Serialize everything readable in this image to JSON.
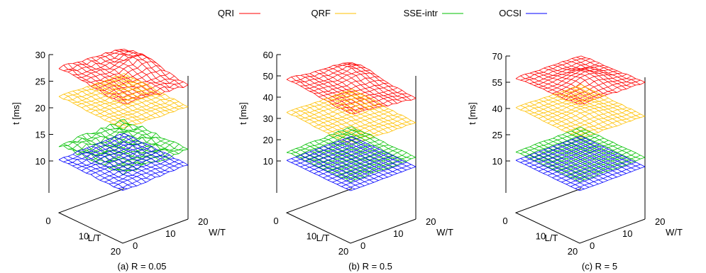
{
  "legend": [
    {
      "label": "QRI",
      "color": "#ff0000"
    },
    {
      "label": "QRF",
      "color": "#ffc000"
    },
    {
      "label": "SSE-intr",
      "color": "#00c000"
    },
    {
      "label": "OCSI",
      "color": "#0000ff"
    }
  ],
  "chart_data": [
    {
      "type": "surface",
      "caption": "(a)  R = 0.05",
      "zlabel": "t [ms]",
      "xlabel": "L/T",
      "ylabel": "W/T",
      "zticks": [
        "10",
        "15",
        "20",
        "25",
        "30"
      ],
      "zlim": [
        10,
        30
      ],
      "xticks": [
        "0",
        "10",
        "20"
      ],
      "yticks": [
        "0",
        "10",
        "20"
      ],
      "series": [
        {
          "name": "QRI",
          "color": "#ff0000",
          "base": 26.5,
          "slope_x": -0.06,
          "slope_y": -0.05,
          "bump": 1.6,
          "noise": 0.25
        },
        {
          "name": "QRF",
          "color": "#ffc000",
          "base": 21.8,
          "slope_x": -0.02,
          "slope_y": -0.02,
          "bump": 0.2,
          "noise": 0.15
        },
        {
          "name": "SSE-intr",
          "color": "#00c000",
          "base": 13.2,
          "slope_x": 0.02,
          "slope_y": 0.0,
          "bump": 0.3,
          "noise": 0.4
        },
        {
          "name": "OCSI",
          "color": "#0000ff",
          "base": 10.4,
          "slope_x": -0.01,
          "slope_y": 0.02,
          "bump": 0.0,
          "noise": 0.15
        }
      ]
    },
    {
      "type": "surface",
      "caption": "(b)   R = 0.5",
      "zlabel": "t [ms]",
      "xlabel": "L/T",
      "ylabel": "W/T",
      "zticks": [
        "10",
        "20",
        "30",
        "40",
        "50",
        "60"
      ],
      "zlim": [
        10,
        60
      ],
      "xticks": [
        "0",
        "10",
        "20"
      ],
      "yticks": [
        "0",
        "10",
        "20"
      ],
      "series": [
        {
          "name": "QRI",
          "color": "#ff0000",
          "base": 45.5,
          "slope_x": -0.12,
          "slope_y": -0.2,
          "bump": 2.5,
          "noise": 0.4
        },
        {
          "name": "QRF",
          "color": "#ffc000",
          "base": 32.0,
          "slope_x": -0.05,
          "slope_y": -0.05,
          "bump": 1.0,
          "noise": 0.3
        },
        {
          "name": "SSE-intr",
          "color": "#00c000",
          "base": 14.5,
          "slope_x": 0.02,
          "slope_y": 0.0,
          "bump": 1.0,
          "noise": 0.4
        },
        {
          "name": "OCSI",
          "color": "#0000ff",
          "base": 10.3,
          "slope_x": 0.0,
          "slope_y": 0.0,
          "bump": 0.0,
          "noise": 0.1
        }
      ]
    },
    {
      "type": "surface",
      "caption": "(c)   R = 5",
      "zlabel": "t [ms]",
      "xlabel": "L/T",
      "ylabel": "W/T",
      "zticks": [
        "10",
        "25",
        "40",
        "55",
        "70"
      ],
      "zlim": [
        10,
        70
      ],
      "xticks": [
        "0",
        "10",
        "20"
      ],
      "yticks": [
        "0",
        "10",
        "20"
      ],
      "series": [
        {
          "name": "QRI",
          "color": "#ff0000",
          "base": 58.0,
          "slope_x": 0.1,
          "slope_y": -0.05,
          "bump": 4.0,
          "noise": 0.4
        },
        {
          "name": "QRF",
          "color": "#ffc000",
          "base": 40.0,
          "slope_x": -0.02,
          "slope_y": -0.05,
          "bump": 1.5,
          "noise": 0.3
        },
        {
          "name": "SSE-intr",
          "color": "#00c000",
          "base": 15.5,
          "slope_x": 0.02,
          "slope_y": 0.0,
          "bump": 0.8,
          "noise": 0.3
        },
        {
          "name": "OCSI",
          "color": "#0000ff",
          "base": 10.4,
          "slope_x": 0.0,
          "slope_y": 0.0,
          "bump": 0.0,
          "noise": 0.1
        }
      ]
    }
  ]
}
